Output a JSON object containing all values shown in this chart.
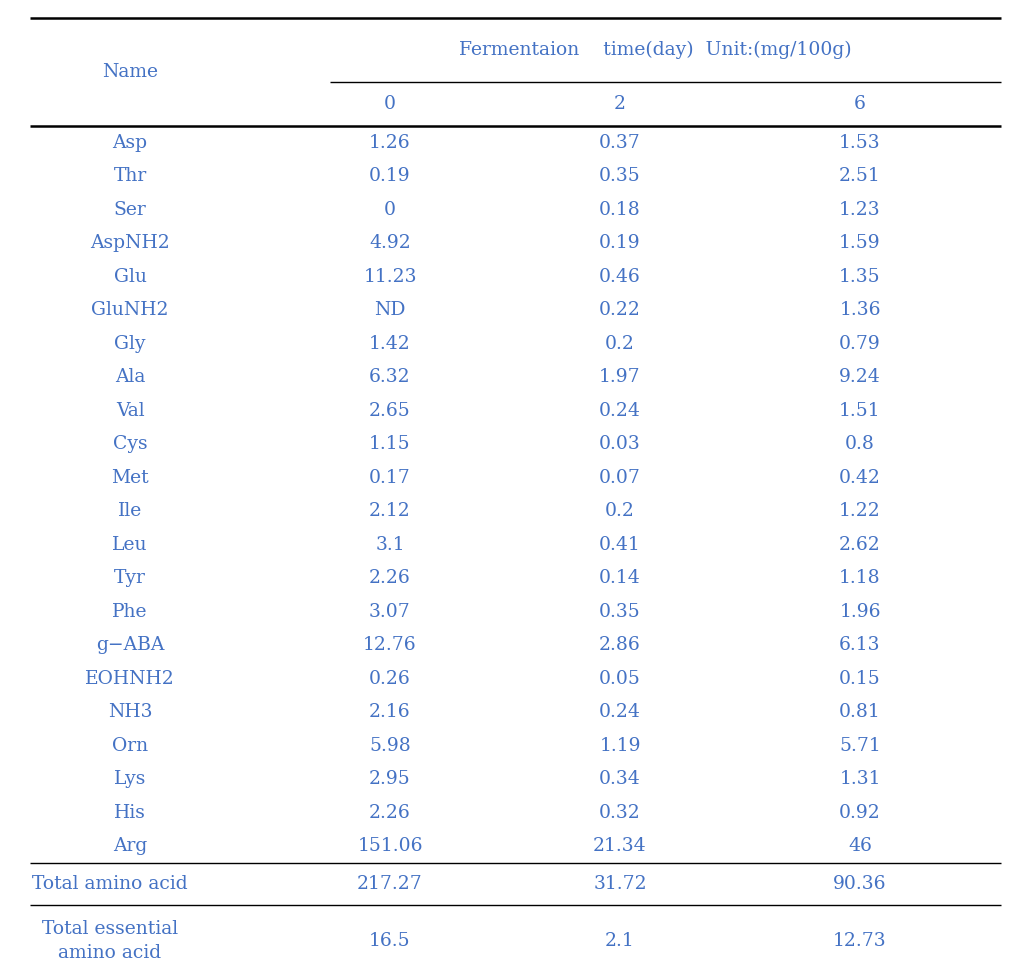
{
  "header_top": "Fermentaion    time(day)  Unit:(mg/100g)",
  "col_headers": [
    "0",
    "2",
    "6"
  ],
  "col_name": "Name",
  "rows": [
    [
      "Asp",
      "1.26",
      "0.37",
      "1.53"
    ],
    [
      "Thr",
      "0.19",
      "0.35",
      "2.51"
    ],
    [
      "Ser",
      "0",
      "0.18",
      "1.23"
    ],
    [
      "AspNH2",
      "4.92",
      "0.19",
      "1.59"
    ],
    [
      "Glu",
      "11.23",
      "0.46",
      "1.35"
    ],
    [
      "GluNH2",
      "ND",
      "0.22",
      "1.36"
    ],
    [
      "Gly",
      "1.42",
      "0.2",
      "0.79"
    ],
    [
      "Ala",
      "6.32",
      "1.97",
      "9.24"
    ],
    [
      "Val",
      "2.65",
      "0.24",
      "1.51"
    ],
    [
      "Cys",
      "1.15",
      "0.03",
      "0.8"
    ],
    [
      "Met",
      "0.17",
      "0.07",
      "0.42"
    ],
    [
      "Ile",
      "2.12",
      "0.2",
      "1.22"
    ],
    [
      "Leu",
      "3.1",
      "0.41",
      "2.62"
    ],
    [
      "Tyr",
      "2.26",
      "0.14",
      "1.18"
    ],
    [
      "Phe",
      "3.07",
      "0.35",
      "1.96"
    ],
    [
      "g−ABA",
      "12.76",
      "2.86",
      "6.13"
    ],
    [
      "EOHNH2",
      "0.26",
      "0.05",
      "0.15"
    ],
    [
      "NH3",
      "2.16",
      "0.24",
      "0.81"
    ],
    [
      "Orn",
      "5.98",
      "1.19",
      "5.71"
    ],
    [
      "Lys",
      "2.95",
      "0.34",
      "1.31"
    ],
    [
      "His",
      "2.26",
      "0.32",
      "0.92"
    ],
    [
      "Arg",
      "151.06",
      "21.34",
      "46"
    ]
  ],
  "total_row": [
    "Total amino acid",
    "217.27",
    "31.72",
    "90.36"
  ],
  "total_essential_row": [
    "Total essential\namino acid",
    "16.5",
    "2.1",
    "12.73"
  ],
  "text_color": "#4472c4",
  "line_color": "#000000",
  "bg_color": "#ffffff",
  "font_size": 13.5,
  "header_font_size": 13.5
}
